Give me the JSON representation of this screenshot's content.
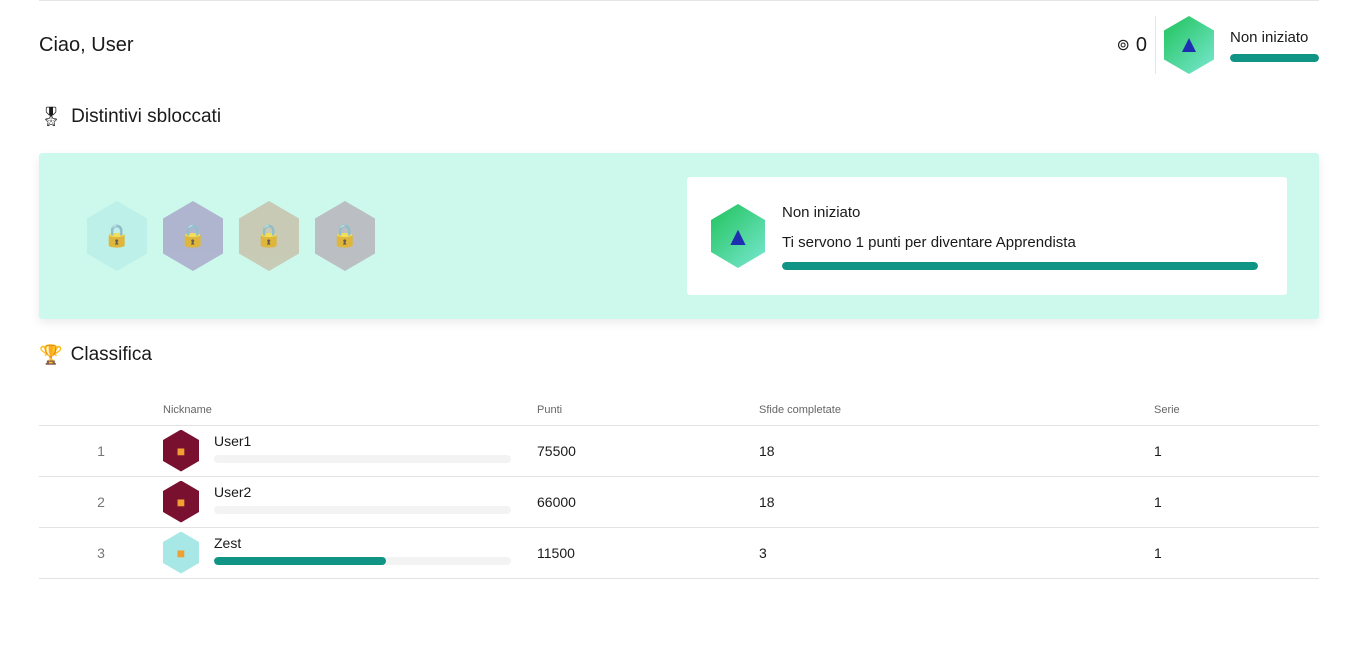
{
  "header": {
    "greeting": "Ciao, User",
    "coins": "0",
    "level": "Non iniziato",
    "level_progress": 1.0
  },
  "badges_section": {
    "title": "Distintivi sbloccati",
    "badges": [
      {
        "locked": true,
        "color": "#b9eee9"
      },
      {
        "locked": true,
        "color": "#a9a4c9"
      },
      {
        "locked": true,
        "color": "#c7bfa9"
      },
      {
        "locked": true,
        "color": "#b7b0b8"
      }
    ],
    "card": {
      "level": "Non iniziato",
      "message": "Ti servono 1 punti per diventare Apprendista",
      "progress": 1.0
    }
  },
  "leaderboard": {
    "title": "Classifica",
    "columns": [
      "Nickname",
      "Punti",
      "Sfide completate",
      "Serie"
    ],
    "rows": [
      {
        "rank": "1",
        "nickname": "User1",
        "points": "75500",
        "challenges": "18",
        "streak": "1",
        "progress": 0,
        "avatar_color": "#7a1030"
      },
      {
        "rank": "2",
        "nickname": "User2",
        "points": "66000",
        "challenges": "18",
        "streak": "1",
        "progress": 0,
        "avatar_color": "#7a1030"
      },
      {
        "rank": "3",
        "nickname": "Zest",
        "points": "11500",
        "challenges": "3",
        "streak": "1",
        "progress": 0.58,
        "avatar_color": "#a7e8e6"
      }
    ]
  },
  "colors": {
    "accent": "#0f9486",
    "panel": "#ccf9ec"
  }
}
